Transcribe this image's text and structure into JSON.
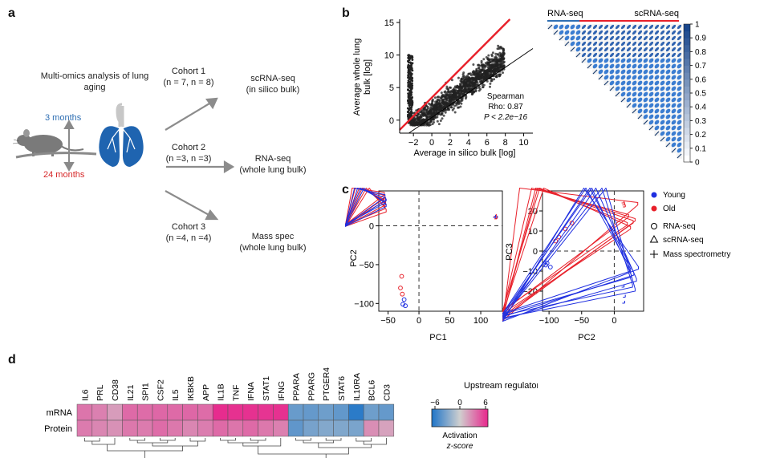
{
  "panels": {
    "a": "a",
    "b": "b",
    "c": "c",
    "d": "d"
  },
  "panel_a": {
    "analysis_title": "Multi-omics analysis of lung aging",
    "age_young": "3 months",
    "age_old": "24 months",
    "cohorts": [
      {
        "name": "Cohort 1",
        "n": "(n = 7, n = 8)",
        "method": "scRNA-seq",
        "detail": "(in silico bulk)"
      },
      {
        "name": "Cohort 2",
        "n": "(n =3, n =3)",
        "method": "RNA-seq",
        "detail": "(whole lung bulk)"
      },
      {
        "name": "Cohort 3",
        "n": "(n =4, n =4)",
        "method": "Mass spec",
        "detail": "(whole lung bulk)"
      }
    ],
    "colors": {
      "young": "#2f6fb3",
      "old": "#d62728",
      "lung": "#1f64b0",
      "arrow": "#8c8c8c"
    }
  },
  "chart_data": [
    {
      "type": "scatter",
      "id": "panel-b-scatter",
      "xlabel": "Average in silico bulk [log]",
      "ylabel": "Average whole lung bulk [log]",
      "x_ticks": [
        "−2",
        "0",
        "2",
        "4",
        "6",
        "8",
        "10"
      ],
      "y_ticks": [
        "0",
        "5",
        "10",
        "15"
      ],
      "xlim": [
        -3.5,
        11
      ],
      "ylim": [
        -2,
        15.5
      ],
      "stats": {
        "method": "Spearman",
        "rho": "Rho: 0.87",
        "p": "P < 2.2e−16"
      },
      "fit_line": {
        "x": [
          -3.5,
          8.5
        ],
        "y": [
          -1.5,
          15.5
        ],
        "color": "#e8202a"
      },
      "identity_line": {
        "x": [
          -2.5,
          11
        ],
        "y": [
          -2,
          11
        ]
      }
    },
    {
      "type": "heatmap",
      "id": "panel-b-correlation",
      "left_label": "RNA-seq",
      "right_label": "scRNA-seq",
      "n": 24,
      "n_rnaseq": 6,
      "colorbar_ticks": [
        "1",
        "0.9",
        "0.8",
        "0.7",
        "0.6",
        "0.5",
        "0.4",
        "0.3",
        "0.2",
        "0.1",
        "0"
      ]
    },
    {
      "type": "scatter",
      "id": "panel-c-pc1-pc2",
      "xlabel": "PC1",
      "ylabel": "PC2",
      "x_ticks": [
        "−50",
        "0",
        "50",
        "100"
      ],
      "y_ticks": [
        "0",
        "−50",
        "−100"
      ],
      "xlim": [
        -65,
        135
      ],
      "ylim": [
        -110,
        45
      ],
      "points": [
        {
          "g": "old",
          "m": "tri",
          "x": -56,
          "y": 40
        },
        {
          "g": "old",
          "m": "tri",
          "x": -55,
          "y": 36
        },
        {
          "g": "old",
          "m": "tri",
          "x": -57,
          "y": 31
        },
        {
          "g": "old",
          "m": "tri",
          "x": -54,
          "y": 27
        },
        {
          "g": "old",
          "m": "tri",
          "x": -55,
          "y": 22
        },
        {
          "g": "old",
          "m": "tri",
          "x": -53,
          "y": 18
        },
        {
          "g": "young",
          "m": "tri",
          "x": -54,
          "y": 33
        },
        {
          "g": "young",
          "m": "tri",
          "x": -56,
          "y": 29
        },
        {
          "g": "young",
          "m": "tri",
          "x": -53,
          "y": 25
        },
        {
          "g": "young",
          "m": "tri",
          "x": -55,
          "y": 37
        },
        {
          "g": "old",
          "m": "plus",
          "x": -56,
          "y": 34
        },
        {
          "g": "old",
          "m": "plus",
          "x": -54,
          "y": 30
        },
        {
          "g": "young",
          "m": "plus",
          "x": -55,
          "y": 28
        },
        {
          "g": "young",
          "m": "plus",
          "x": -53,
          "y": 32
        },
        {
          "g": "old",
          "m": "plus",
          "x": 125,
          "y": 12
        },
        {
          "g": "young",
          "m": "plus",
          "x": 127,
          "y": 10
        },
        {
          "g": "old",
          "m": "plus",
          "x": 126,
          "y": 9
        },
        {
          "g": "young",
          "m": "plus",
          "x": 124,
          "y": 11
        },
        {
          "g": "old",
          "m": "circle",
          "x": -28,
          "y": -65
        },
        {
          "g": "old",
          "m": "circle",
          "x": -30,
          "y": -80
        },
        {
          "g": "old",
          "m": "circle",
          "x": -27,
          "y": -88
        },
        {
          "g": "young",
          "m": "circle",
          "x": -24,
          "y": -95
        },
        {
          "g": "young",
          "m": "circle",
          "x": -22,
          "y": -103
        },
        {
          "g": "young",
          "m": "circle",
          "x": -26,
          "y": -101
        }
      ]
    },
    {
      "type": "scatter",
      "id": "panel-c-pc2-pc3",
      "xlabel": "PC2",
      "ylabel": "PC3",
      "x_ticks": [
        "−100",
        "−50",
        "0"
      ],
      "y_ticks": [
        "20",
        "10",
        "0",
        "−10",
        "−20"
      ],
      "xlim": [
        -110,
        45
      ],
      "ylim": [
        -30,
        30
      ],
      "points": [
        {
          "g": "old",
          "m": "circle",
          "x": -65,
          "y": 14
        },
        {
          "g": "old",
          "m": "circle",
          "x": -75,
          "y": 11
        },
        {
          "g": "old",
          "m": "circle",
          "x": -85,
          "y": 7
        },
        {
          "g": "old",
          "m": "circle",
          "x": -90,
          "y": 5
        },
        {
          "g": "young",
          "m": "circle",
          "x": -105,
          "y": -7
        },
        {
          "g": "young",
          "m": "circle",
          "x": -98,
          "y": -8
        },
        {
          "g": "young",
          "m": "circle",
          "x": -103,
          "y": -6
        },
        {
          "g": "old",
          "m": "plus",
          "x": 15,
          "y": 24
        },
        {
          "g": "old",
          "m": "plus",
          "x": 17,
          "y": 22
        },
        {
          "g": "old",
          "m": "plus",
          "x": 16,
          "y": 23
        },
        {
          "g": "old",
          "m": "tri",
          "x": 36,
          "y": 23
        },
        {
          "g": "old",
          "m": "tri",
          "x": 32,
          "y": 15
        },
        {
          "g": "old",
          "m": "tri",
          "x": 22,
          "y": 17
        },
        {
          "g": "old",
          "m": "tri",
          "x": 25,
          "y": 11
        },
        {
          "g": "old",
          "m": "tri",
          "x": 20,
          "y": 13
        },
        {
          "g": "old",
          "m": "tri",
          "x": 29,
          "y": 14
        },
        {
          "g": "young",
          "m": "tri",
          "x": 25,
          "y": -10
        },
        {
          "g": "young",
          "m": "tri",
          "x": 30,
          "y": -12
        },
        {
          "g": "young",
          "m": "tri",
          "x": 34,
          "y": -15
        },
        {
          "g": "young",
          "m": "tri",
          "x": 37,
          "y": -9
        },
        {
          "g": "young",
          "m": "tri",
          "x": 28,
          "y": -18
        },
        {
          "g": "young",
          "m": "tri",
          "x": 32,
          "y": -20
        },
        {
          "g": "young",
          "m": "tri",
          "x": 26,
          "y": -13
        },
        {
          "g": "young",
          "m": "plus",
          "x": 15,
          "y": -18
        },
        {
          "g": "young",
          "m": "plus",
          "x": 17,
          "y": -23
        },
        {
          "g": "young",
          "m": "plus",
          "x": 16,
          "y": -26
        }
      ]
    },
    {
      "type": "heatmap",
      "id": "panel-d-regulators",
      "title": "Upstream regulator analysis",
      "rows": [
        "mRNA",
        "Protein"
      ],
      "columns": [
        "IL6",
        "PRL",
        "CD38",
        "IL21",
        "SPI1",
        "CSF2",
        "IL5",
        "IKBKB",
        "APP",
        "IL1B",
        "TNF",
        "IFNA",
        "STAT1",
        "IFNG",
        "PPARA",
        "PPARG",
        "PTGER4",
        "STAT6",
        "IL10RA",
        "BCL6",
        "CD3"
      ],
      "values": [
        [
          3.2,
          2.8,
          1.8,
          3.6,
          3.5,
          3.7,
          3.6,
          3.7,
          3.5,
          5.8,
          5.6,
          5.6,
          5.5,
          5.6,
          -3.5,
          -3.6,
          -3.3,
          -3.7,
          -5.6,
          -3.3,
          -3.6
        ],
        [
          3.0,
          2.6,
          2.2,
          3.1,
          3.0,
          3.5,
          3.1,
          2.6,
          2.9,
          3.6,
          3.2,
          3.6,
          3.1,
          2.8,
          -3.8,
          -3.0,
          -2.6,
          -2.7,
          -2.9,
          2.3,
          1.6
        ]
      ],
      "colorbar": {
        "ticks": [
          "−6",
          "0",
          "6"
        ],
        "label": "Activation",
        "label2": "z-score",
        "min": -6,
        "max": 6
      }
    }
  ],
  "legend_c": {
    "young": "Young",
    "old": "Old",
    "rnaseq": "RNA-seq",
    "scrnaseq": "scRNA-seq",
    "mass": "Mass spectrometry"
  }
}
